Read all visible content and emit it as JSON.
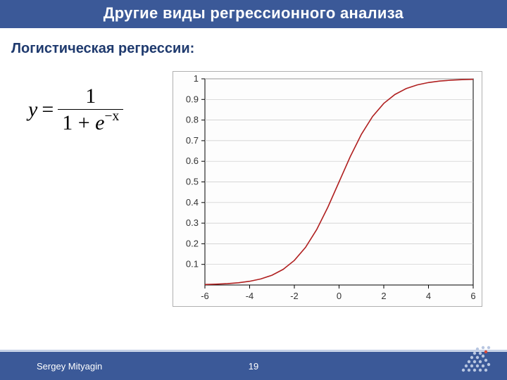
{
  "header": {
    "title": "Другие виды регрессионного анализа"
  },
  "subtitle": "Логистическая регрессии:",
  "formula": {
    "lhs": "y",
    "eq": "=",
    "numerator": "1",
    "den_prefix": "1 + ",
    "den_base": "e",
    "den_exponent": "−x"
  },
  "chart": {
    "type": "line",
    "background_color": "#fdfdfd",
    "plot_border_color": "#000000",
    "tick_color": "#000000",
    "grid_color": "#c8c8c8",
    "line_color": "#b02020",
    "line_width": 1.6,
    "tick_font_size": 13,
    "xlim": [
      -6,
      6
    ],
    "ylim": [
      0,
      1
    ],
    "xticks": [
      -6,
      -4,
      -2,
      0,
      2,
      4,
      6
    ],
    "yticks_labels": [
      "0.1",
      "0.2",
      "0.3",
      "0.4",
      "0.5",
      "0.6",
      "0.7",
      "0.8",
      "0.9",
      "1"
    ],
    "yticks_values": [
      0.1,
      0.2,
      0.3,
      0.4,
      0.5,
      0.6,
      0.7,
      0.8,
      0.9,
      1.0
    ],
    "series_x": [
      -6,
      -5.5,
      -5,
      -4.5,
      -4,
      -3.5,
      -3,
      -2.5,
      -2,
      -1.5,
      -1,
      -0.5,
      0,
      0.5,
      1,
      1.5,
      2,
      2.5,
      3,
      3.5,
      4,
      4.5,
      5,
      5.5,
      6
    ],
    "series_y": [
      0.00247,
      0.00407,
      0.00669,
      0.01099,
      0.01799,
      0.02931,
      0.04743,
      0.07586,
      0.1192,
      0.18243,
      0.26894,
      0.37754,
      0.5,
      0.62246,
      0.73106,
      0.81757,
      0.8808,
      0.92414,
      0.95257,
      0.97069,
      0.98201,
      0.98901,
      0.99331,
      0.99593,
      0.99753
    ]
  },
  "footer": {
    "author": "Sergey Mityagin",
    "page_number": "19"
  },
  "logo": {
    "dot_color": "#b8c6e1",
    "accent_color": "#d94a3a"
  }
}
